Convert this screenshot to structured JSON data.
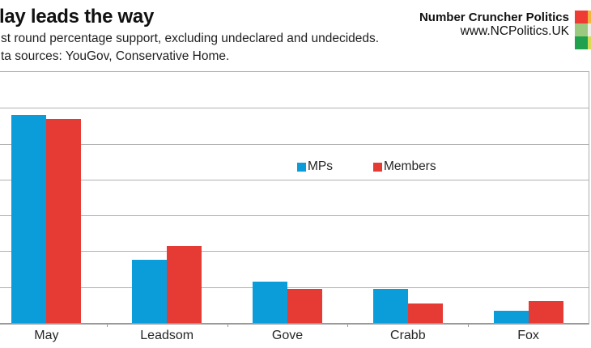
{
  "header": {
    "title": "lay leads the way",
    "subtitle": "st round percentage support, excluding undeclared and undecideds.",
    "sources": "ta sources: YouGov, Conservative Home."
  },
  "brand": {
    "name": "Number Cruncher Politics",
    "url": "www.NCPolitics.UK",
    "logo_grid_colors": [
      [
        "#ee3b33",
        "#f4b63f"
      ],
      [
        "#9bc97f",
        "#efefe8"
      ],
      [
        "#1fa14d",
        "#d8dc52"
      ]
    ]
  },
  "chart_data": {
    "type": "bar",
    "title": "lay leads the way",
    "subtitle": "st round percentage support, excluding undeclared and undecideds.",
    "categories": [
      "May",
      "Leadsom",
      "Gove",
      "Crabb",
      "Fox"
    ],
    "series": [
      {
        "name": "MPs",
        "color": "#0b9dda",
        "values": [
          58.0,
          17.6,
          11.5,
          9.5,
          3.3
        ]
      },
      {
        "name": "Members",
        "color": "#e63b34",
        "values": [
          57.0,
          21.5,
          9.6,
          5.4,
          6.0
        ]
      }
    ],
    "xlabel": "",
    "ylabel": "",
    "ylim": [
      0,
      70
    ],
    "grid_step": 10,
    "grid": "on",
    "legend_position": "inside-top-center",
    "colors": {
      "grid_line": "#b0b0b0",
      "axis_line": "#999999",
      "plot_border": "#adadad"
    }
  }
}
